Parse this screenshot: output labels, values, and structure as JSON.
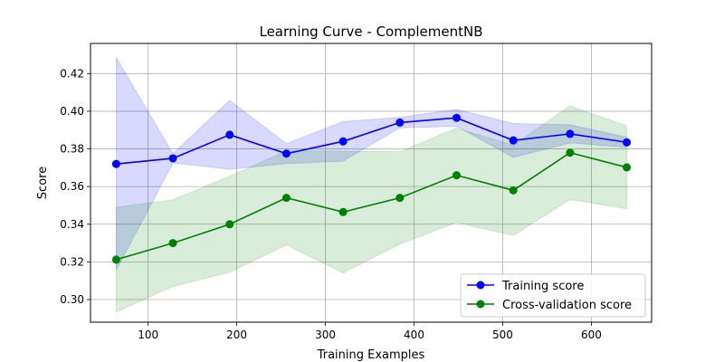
{
  "chart_data": {
    "type": "line",
    "title": "Learning Curve - ComplementNB",
    "xlabel": "Training Examples",
    "ylabel": "Score",
    "xlim": [
      35,
      668
    ],
    "ylim": [
      0.288,
      0.436
    ],
    "x_ticks": [
      100,
      200,
      300,
      400,
      500,
      600
    ],
    "y_ticks": [
      0.3,
      0.32,
      0.34,
      0.36,
      0.38,
      0.4,
      0.42
    ],
    "x_tick_labels": [
      "100",
      "200",
      "300",
      "400",
      "500",
      "600"
    ],
    "y_tick_labels": [
      "0.30",
      "0.32",
      "0.34",
      "0.36",
      "0.38",
      "0.40",
      "0.42"
    ],
    "grid": true,
    "legend_position": "lower-right",
    "x": [
      64,
      128,
      192,
      256,
      320,
      384,
      448,
      512,
      576,
      640
    ],
    "series": [
      {
        "name": "Training score",
        "color": "#0000ff",
        "fill_color": "#0000ff",
        "values": [
          0.372,
          0.375,
          0.3875,
          0.3775,
          0.384,
          0.394,
          0.3965,
          0.3845,
          0.388,
          0.3835
        ],
        "upper": [
          0.4285,
          0.3775,
          0.4058,
          0.3828,
          0.3945,
          0.3968,
          0.401,
          0.3935,
          0.3928,
          0.3862
        ],
        "lower": [
          0.3155,
          0.3725,
          0.3692,
          0.3722,
          0.3735,
          0.3912,
          0.392,
          0.3755,
          0.3832,
          0.3808
        ]
      },
      {
        "name": "Cross-validation score",
        "color": "#008000",
        "fill_color": "#008000",
        "values": [
          0.3212,
          0.33,
          0.34,
          0.354,
          0.3465,
          0.354,
          0.366,
          0.358,
          0.378,
          0.3702
        ],
        "upper": [
          0.349,
          0.353,
          0.3655,
          0.379,
          0.3788,
          0.3785,
          0.391,
          0.382,
          0.4028,
          0.3922
        ],
        "lower": [
          0.2934,
          0.307,
          0.3145,
          0.329,
          0.3142,
          0.3295,
          0.341,
          0.334,
          0.3532,
          0.3482
        ]
      }
    ]
  }
}
